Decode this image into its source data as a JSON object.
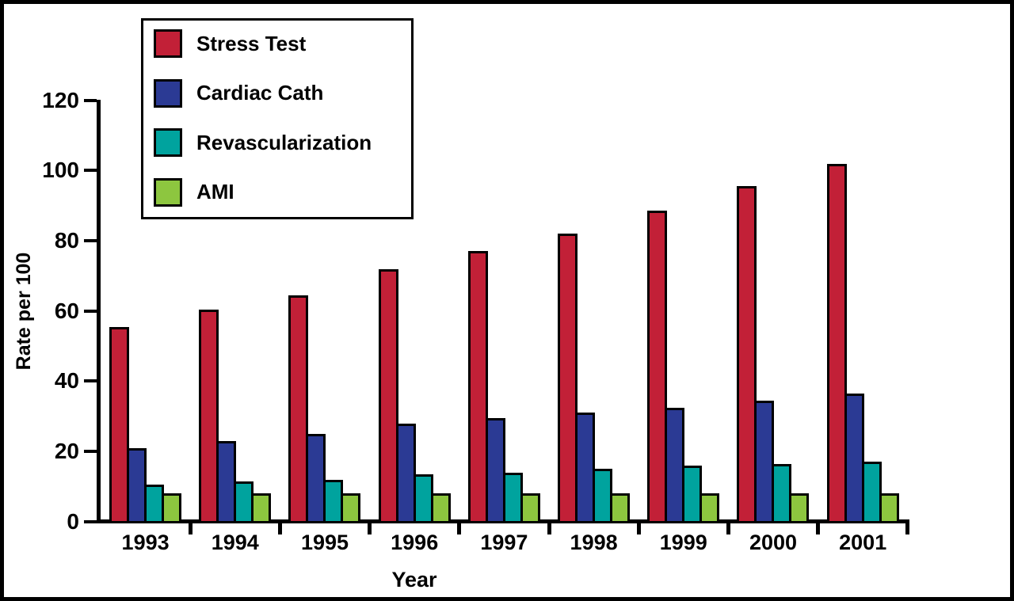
{
  "figure": {
    "background": "#ffffff",
    "frame_color": "#000000",
    "axis_color": "#000000"
  },
  "chart_data": {
    "type": "bar",
    "title": "",
    "xlabel": "Year",
    "ylabel": "Rate per 100",
    "categories": [
      "1993",
      "1994",
      "1995",
      "1996",
      "1997",
      "1998",
      "1999",
      "2000",
      "2001"
    ],
    "series": [
      {
        "name": "Stress Test",
        "color": "#C22037",
        "values": [
          56,
          61,
          65,
          72.5,
          77.5,
          82.5,
          89,
          96,
          102.5
        ]
      },
      {
        "name": "Cardiac Cath",
        "color": "#2B3A94",
        "values": [
          21.5,
          23.5,
          25.5,
          28.5,
          30,
          31.5,
          33,
          35,
          37
        ]
      },
      {
        "name": "Revascularization",
        "color": "#00A39E",
        "values": [
          11,
          12,
          12.5,
          14,
          14.5,
          15.5,
          16.5,
          17,
          17.5
        ]
      },
      {
        "name": "AMI",
        "color": "#8DC63F",
        "values": [
          8.5,
          8.5,
          8.5,
          8.5,
          8.5,
          8.5,
          8.5,
          8.5,
          8.5
        ]
      }
    ],
    "ylim": [
      0,
      120
    ],
    "yticks": [
      0,
      20,
      40,
      60,
      80,
      100,
      120
    ],
    "grid": false,
    "legend_position": "top-left",
    "bar_border_color": "#000000"
  }
}
